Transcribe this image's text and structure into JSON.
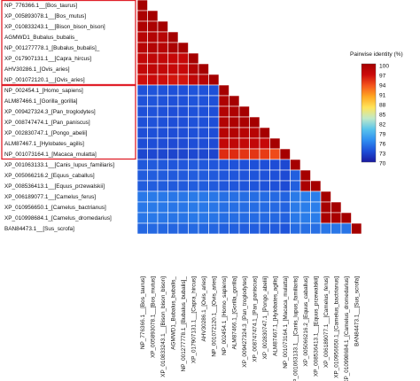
{
  "chart_data": {
    "type": "heatmap",
    "layout": "lower-triangle",
    "labels": [
      "NP_776366.1__[Bos_taurus]",
      "XP_005893078.1__[Bos_mutus]",
      "XP_010833243.1__[Bison_bison_bison]",
      "AGMWD1_Bubalus_bubalis_",
      "NP_001277778.1_[Bubalus_bubalis]_",
      "XP_017907131.1__[Capra_hircus]",
      "AHV30286.1_[Ovis_aries]",
      "NP_001072120.1__[Ovis_aries]",
      "NP_002454.1_[Homo_sapiens]",
      "ALM87466.1_[Gorilla_gorilla]",
      "XP_009427324.3_[Pan_troglodytes]",
      "XP_008747474.1_[Pan_paniscus]",
      "XP_002830747.1_[Pongo_abelii]",
      "ALM87467.1_[Hylobates_agilis]",
      "NP_001073164.1_[Macaca_mulatta]",
      "XP_001063133.1__[Canis_lupus_familiaris]",
      "XP_005066216.2_[Equus_caballus]",
      "XP_008536413.1__[Equus_przewalskii]",
      "XP_006189077.1__[Camelus_ferus]",
      "XP_010956650.1_[Camelus_bactrianus]",
      "XP_010998684.1_[Camelus_dromedarius]",
      "BAN84473.1__[Sus_scrofa]"
    ],
    "groups": [
      [
        0,
        7
      ],
      [
        8,
        14
      ]
    ],
    "values": [
      [
        100
      ],
      [
        99.5,
        100
      ],
      [
        99.2,
        99.5,
        100
      ],
      [
        98.5,
        98.8,
        98.5,
        100
      ],
      [
        98.5,
        98.8,
        98.5,
        99.5,
        100
      ],
      [
        97.5,
        97.8,
        97.5,
        97.2,
        97.2,
        100
      ],
      [
        97.5,
        97.8,
        97.5,
        97.2,
        97.2,
        98.8,
        100
      ],
      [
        96.5,
        96.8,
        96.5,
        96.2,
        96.2,
        97.8,
        98.5,
        100
      ],
      [
        73.5,
        73.6,
        73.5,
        73.4,
        73.4,
        73.6,
        73.5,
        73.4,
        100
      ],
      [
        73.5,
        73.6,
        73.5,
        73.4,
        73.4,
        73.6,
        73.5,
        73.4,
        99.2,
        100
      ],
      [
        73.4,
        73.5,
        73.4,
        73.3,
        73.3,
        73.5,
        73.4,
        73.3,
        98.8,
        99.2,
        100
      ],
      [
        73.4,
        73.5,
        73.4,
        73.3,
        73.3,
        73.5,
        73.4,
        73.3,
        98.8,
        99.2,
        99.5,
        100
      ],
      [
        73.3,
        73.4,
        73.3,
        73.2,
        73.2,
        73.4,
        73.3,
        73.2,
        98.5,
        98.8,
        98.5,
        98.5,
        100
      ],
      [
        73.2,
        73.3,
        73.2,
        73.1,
        73.1,
        73.3,
        73.2,
        73.1,
        97.5,
        97.8,
        97.5,
        97.5,
        97.2,
        100
      ],
      [
        72.8,
        72.9,
        72.8,
        72.7,
        72.7,
        72.9,
        72.8,
        72.7,
        95.2,
        95.2,
        94.8,
        94.8,
        94.5,
        93.8,
        100
      ],
      [
        73.8,
        73.9,
        73.8,
        73.7,
        73.7,
        73.9,
        73.8,
        73.7,
        73.5,
        73.5,
        73.4,
        73.4,
        73.3,
        73.2,
        72.9,
        100
      ],
      [
        74.0,
        74.1,
        74.0,
        73.9,
        73.9,
        74.1,
        74.0,
        73.9,
        73.7,
        73.7,
        73.6,
        73.6,
        73.5,
        73.4,
        73.1,
        74.2,
        100
      ],
      [
        74.0,
        74.1,
        74.0,
        73.9,
        73.9,
        74.1,
        74.0,
        73.9,
        73.7,
        73.7,
        73.6,
        73.6,
        73.5,
        73.4,
        73.1,
        74.2,
        99.6,
        100
      ],
      [
        75.5,
        75.6,
        75.5,
        75.4,
        75.4,
        75.6,
        75.5,
        75.4,
        75.0,
        75.0,
        74.9,
        74.9,
        74.8,
        74.7,
        74.4,
        75.6,
        75.8,
        75.8,
        100
      ],
      [
        75.5,
        75.6,
        75.5,
        75.4,
        75.4,
        75.6,
        75.5,
        75.4,
        75.0,
        75.0,
        74.9,
        74.9,
        74.8,
        74.7,
        74.4,
        75.6,
        75.8,
        75.8,
        99.8,
        100
      ],
      [
        75.4,
        75.5,
        75.4,
        75.3,
        75.3,
        75.5,
        75.4,
        75.3,
        74.9,
        74.9,
        74.8,
        74.8,
        74.7,
        74.6,
        74.3,
        75.5,
        75.7,
        75.7,
        99.6,
        99.7,
        100
      ],
      [
        74.6,
        74.7,
        74.6,
        74.5,
        74.5,
        74.7,
        74.6,
        74.5,
        74.2,
        74.2,
        74.1,
        74.1,
        74.0,
        73.9,
        73.6,
        74.8,
        75.0,
        75.0,
        75.4,
        75.4,
        75.3,
        100
      ]
    ],
    "colorbar": {
      "title": "Pairwise identity (%)",
      "ticks": [
        "100",
        "97",
        "94",
        "91",
        "88",
        "85",
        "82",
        "79",
        "76",
        "73",
        "70"
      ],
      "vmin": 70,
      "vmax": 100,
      "colors": [
        "#1a1aa0",
        "#1e4fd8",
        "#2f8ef0",
        "#58c3ec",
        "#bfe9c9",
        "#ffe45a",
        "#ffa722",
        "#f5561c",
        "#cc0a0a",
        "#a50000"
      ],
      "placement": "right"
    },
    "group_box_color": "#e0202a",
    "grid": true
  },
  "colorbar": {
    "title": "Pairwise identity (%)",
    "t0": "100",
    "t1": "97",
    "t2": "94",
    "t3": "91",
    "t4": "88",
    "t5": "85",
    "t6": "82",
    "t7": "79",
    "t8": "76",
    "t9": "73",
    "t10": "70"
  }
}
